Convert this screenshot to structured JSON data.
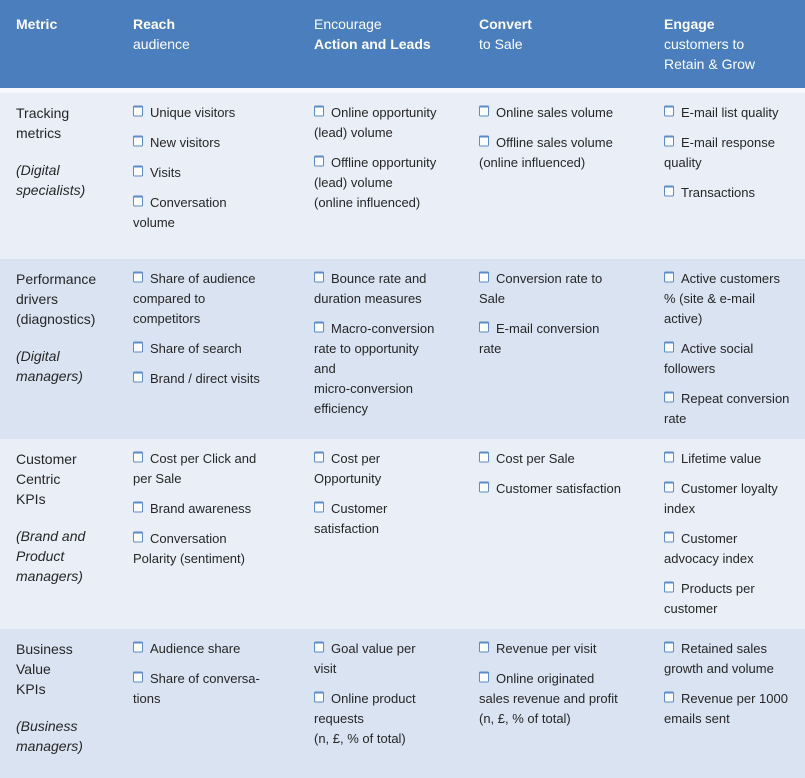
{
  "colors": {
    "header_bg": "#4a7ebc",
    "header_text": "#ffffff",
    "row_light": "#e9eef7",
    "row_dark": "#d9e3f1",
    "body_text": "#262626",
    "checkbox_border": "#5d8cc8",
    "checkbox_fill": "#fbfdff"
  },
  "icons": {
    "list_bullet": "open-checkbox-square"
  },
  "table": {
    "header": {
      "cells": [
        {
          "strong": "Metric",
          "normal": ""
        },
        {
          "strong": "Reach",
          "normal": "audience"
        },
        {
          "normal": "Encourage",
          "strong": "Action and Leads"
        },
        {
          "strong": "Convert",
          "normal": "to Sale"
        },
        {
          "strong": "Engage",
          "normal": "customers to\nRetain & Grow"
        }
      ]
    },
    "rows": [
      {
        "metric": {
          "title": "Tracking\nmetrics",
          "sub": "(Digital\nspecialists)"
        },
        "cells": [
          {
            "items": [
              "Unique visitors",
              "New visitors",
              "Visits",
              "Conversation\nvolume"
            ]
          },
          {
            "items": [
              "Online opportunity\n(lead) volume",
              "Offline opportunity\n(lead) volume\n(online influenced)"
            ]
          },
          {
            "items": [
              "Online sales volume",
              "Offline sales volume\n(online influenced)"
            ]
          },
          {
            "items": [
              "E-mail list quality",
              "E-mail response\nquality",
              "Transactions"
            ]
          }
        ]
      },
      {
        "metric": {
          "title": "Performance\ndrivers\n(diagnostics)",
          "sub": "(Digital\nmanagers)"
        },
        "cells": [
          {
            "items": [
              "Share of audience\ncompared to\ncompetitors",
              "Share of search",
              "Brand / direct visits"
            ]
          },
          {
            "items": [
              "Bounce rate and\nduration measures",
              "Macro-conversion\nrate to opportunity\nand\nmicro-conversion\nefficiency"
            ]
          },
          {
            "items": [
              "Conversion rate to\nSale",
              "E-mail conversion\nrate"
            ]
          },
          {
            "items": [
              "Active customers\n% (site & e-mail\nactive)",
              "Active social\nfollowers",
              "Repeat conversion\nrate"
            ]
          }
        ]
      },
      {
        "metric": {
          "title": "Customer\nCentric\nKPIs",
          "sub": "(Brand and\nProduct\nmanagers)"
        },
        "cells": [
          {
            "items": [
              "Cost per Click and\nper Sale",
              "Brand awareness",
              "Conversation\nPolarity (sentiment)"
            ]
          },
          {
            "items": [
              "Cost per\nOpportunity",
              "Customer\nsatisfaction"
            ]
          },
          {
            "items": [
              "Cost per Sale",
              "Customer satisfaction"
            ]
          },
          {
            "items": [
              "Lifetime value",
              "Customer loyalty\nindex",
              "Customer\nadvocacy index",
              "Products per\ncustomer"
            ]
          }
        ]
      },
      {
        "metric": {
          "title": "Business\nValue\nKPIs",
          "sub": "(Business\nmanagers)"
        },
        "cells": [
          {
            "items": [
              "Audience share",
              "Share of conversa-\ntions"
            ]
          },
          {
            "items": [
              "Goal value per\nvisit",
              "Online product\nrequests\n(n, £, % of total)"
            ]
          },
          {
            "items": [
              "Revenue per visit",
              "Online originated\nsales revenue and profit\n(n, £, % of total)"
            ]
          },
          {
            "items": [
              "Retained sales\ngrowth and volume",
              "Revenue per 1000\nemails sent"
            ]
          }
        ]
      }
    ]
  }
}
